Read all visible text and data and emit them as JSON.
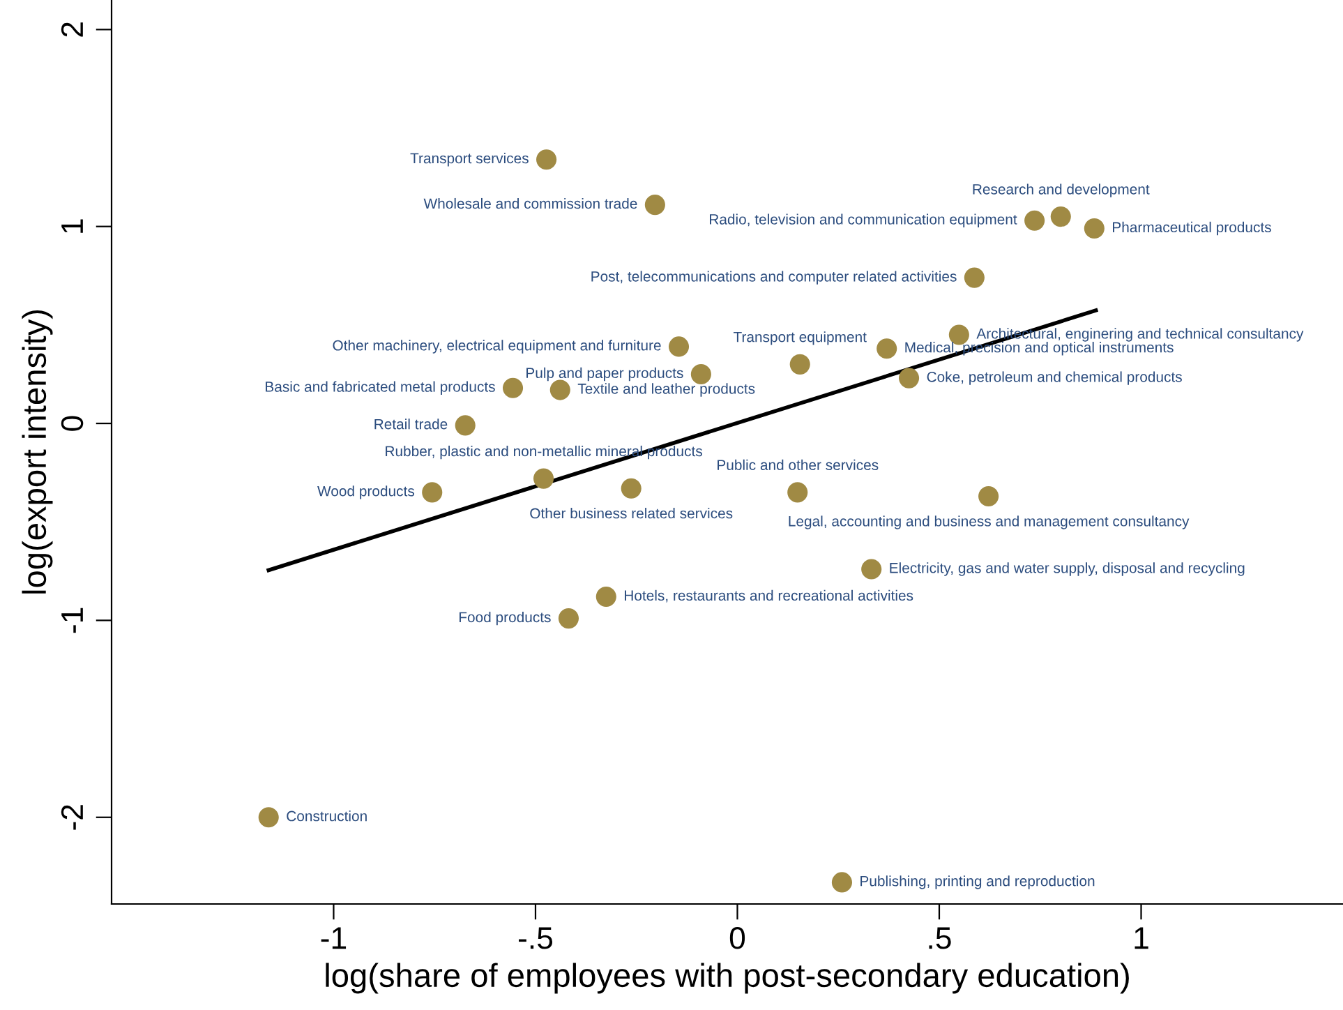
{
  "chart_data": {
    "type": "scatter",
    "xlabel": "log(share of employees with post-secondary education)",
    "ylabel": "log(export intensity)",
    "xlim": [
      -1.55,
      1.5
    ],
    "ylim": [
      -2.44,
      2.15
    ],
    "xticks": [
      {
        "value": -1,
        "label": "-1"
      },
      {
        "value": -0.5,
        "label": "-.5"
      },
      {
        "value": 0,
        "label": "0"
      },
      {
        "value": 0.5,
        "label": ".5"
      },
      {
        "value": 1,
        "label": "1"
      }
    ],
    "yticks": [
      -2,
      -1,
      0,
      1,
      2
    ],
    "grid": false,
    "legend": false,
    "series": [
      {
        "color": "#a08a44",
        "marker": "circle",
        "x": [
          -0.473,
          -0.204,
          0.801,
          0.736,
          0.884,
          0.587,
          -0.145,
          0.155,
          0.37,
          0.549,
          0.425,
          -0.09,
          -0.556,
          -0.439,
          -0.674,
          -0.48,
          -0.756,
          -0.263,
          0.149,
          0.622,
          0.332,
          -0.325,
          -0.418,
          -1.161,
          0.259
        ],
        "values": [
          1.34,
          1.11,
          1.05,
          1.03,
          0.99,
          0.74,
          0.39,
          0.3,
          0.38,
          0.45,
          0.23,
          0.25,
          0.18,
          0.17,
          -0.01,
          -0.28,
          -0.35,
          -0.33,
          -0.35,
          -0.37,
          -0.74,
          -0.88,
          -0.99,
          -2.0,
          -2.33
        ],
        "value_labels": [
          "Transport services",
          "Wholesale and commission trade",
          "Research and development",
          "Radio, television and communication equipment",
          "Pharmaceutical products",
          "Post, telecommunications and computer related activities",
          "Other machinery, electrical equipment and furniture",
          "Transport equipment",
          "Medical, precision and optical instruments",
          "Architectural, enginering and technical consultancy",
          "Coke, petroleum and chemical products",
          "Pulp and paper products",
          "Basic and fabricated metal products",
          "Textile and leather products",
          "Retail trade",
          "Rubber, plastic and non-metallic mineral products",
          "Wood products",
          "Other business related services",
          "Public and other services",
          "Legal, accounting and business and management consultancy",
          "Electricity, gas and water supply, disposal and recycling",
          "Hotels, restaurants and recreational activities",
          "Food products",
          "Construction",
          "Publishing, printing and reproduction"
        ]
      },
      {
        "type": "line",
        "color": "#000000",
        "line_style": "solid",
        "x": [
          -1.161,
          0.888
        ],
        "values": [
          -0.745,
          0.574
        ]
      }
    ]
  }
}
